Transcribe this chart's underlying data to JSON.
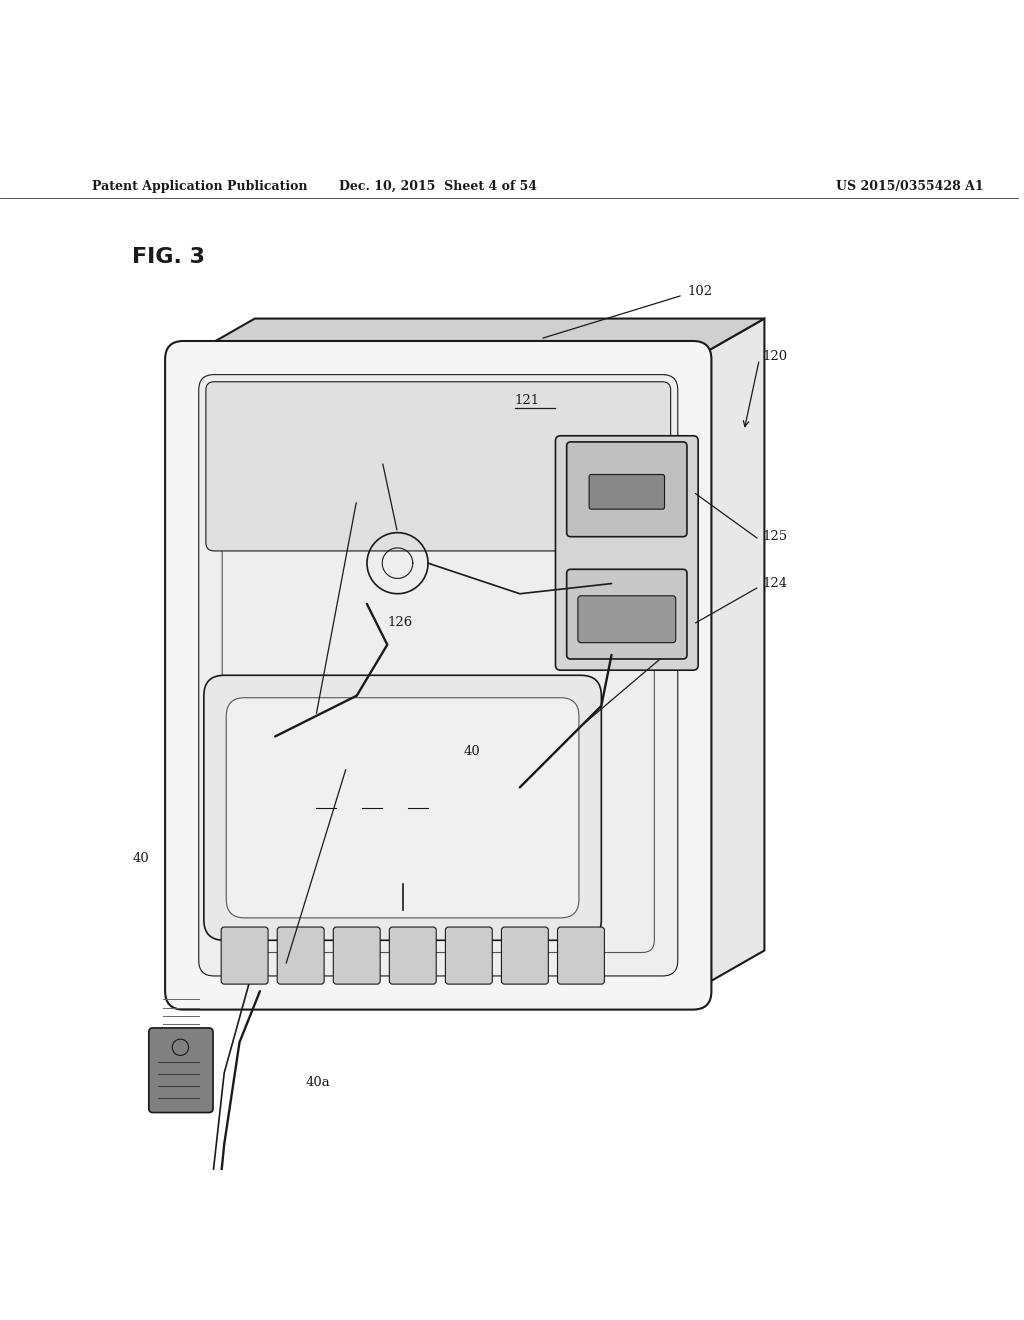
{
  "bg_color": "#ffffff",
  "header_text1": "Patent Application Publication",
  "header_text2": "Dec. 10, 2015  Sheet 4 of 54",
  "header_text3": "US 2015/0355428 A1",
  "fig_label": "FIG. 3",
  "color_main": "#1a1a1a",
  "color_light": "#555555",
  "lw_main": 1.5,
  "lw_thin": 0.8,
  "lw_med": 1.2,
  "fx": 0.18,
  "fy": 0.175,
  "fw": 0.5,
  "fh": 0.62
}
